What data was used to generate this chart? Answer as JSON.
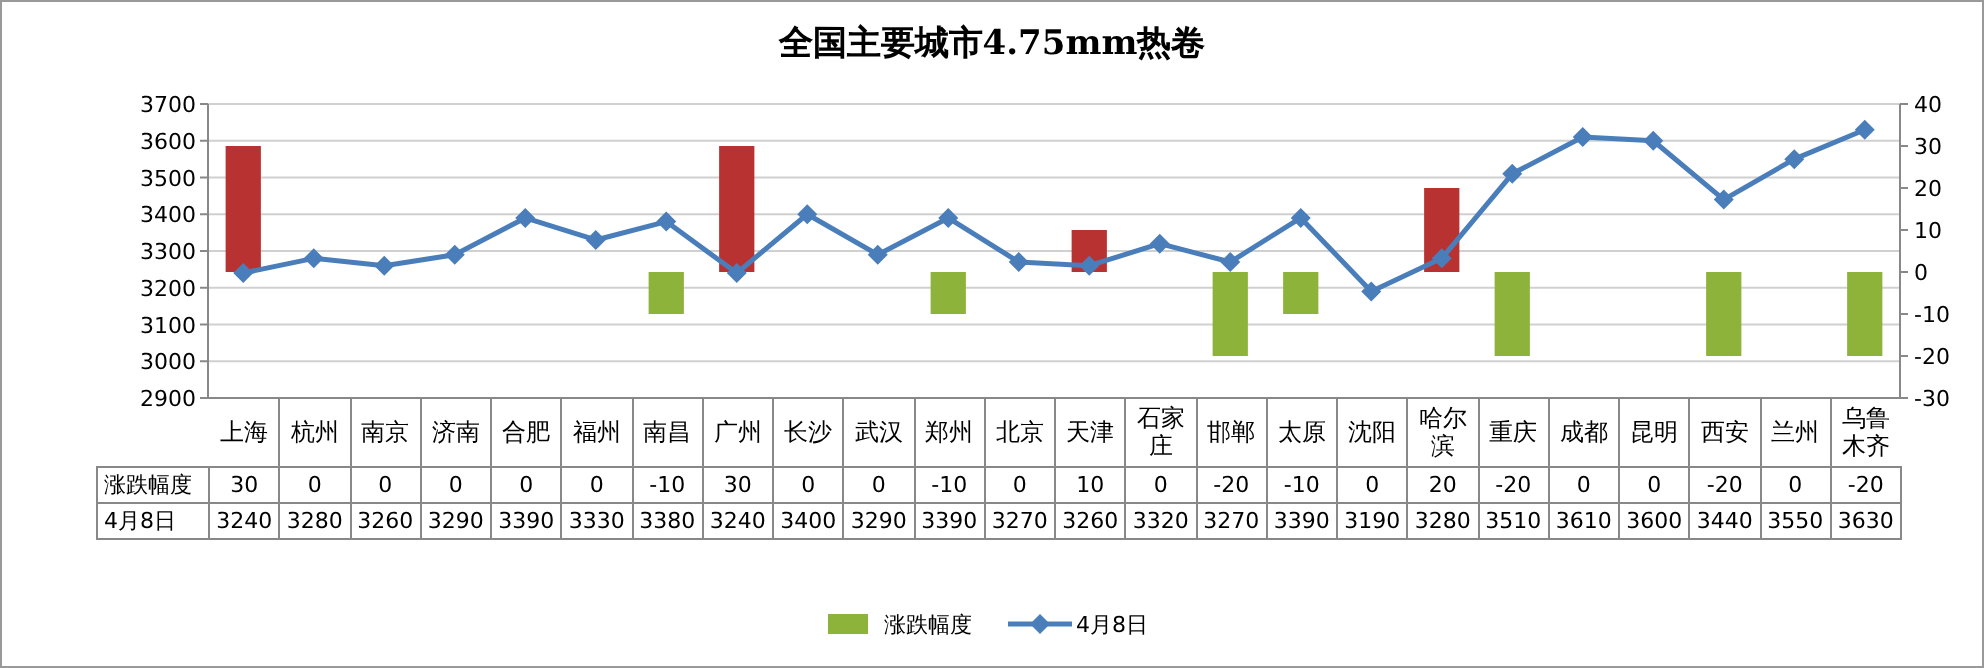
{
  "chart_data": {
    "type": "bar",
    "title": "全国主要城市4.75mm热卷",
    "categories": [
      "上海",
      "杭州",
      "南京",
      "济南",
      "合肥",
      "福州",
      "南昌",
      "广州",
      "长沙",
      "武汉",
      "郑州",
      "北京",
      "天津",
      "石家庄",
      "邯郸",
      "太原",
      "沈阳",
      "哈尔滨",
      "重庆",
      "成都",
      "昆明",
      "西安",
      "兰州",
      "乌鲁木齐"
    ],
    "series": [
      {
        "name": "涨跌幅度",
        "axis": "y2",
        "color": "#8db33a",
        "colors": [
          "#b83232",
          "#8db33a",
          "#8db33a",
          "#8db33a",
          "#8db33a",
          "#8db33a",
          "#8db33a",
          "#b83232",
          "#8db33a",
          "#8db33a",
          "#8db33a",
          "#8db33a",
          "#b83232",
          "#8db33a",
          "#8db33a",
          "#8db33a",
          "#8db33a",
          "#b83232",
          "#8db33a",
          "#8db33a",
          "#8db33a",
          "#8db33a",
          "#8db33a",
          "#8db33a"
        ],
        "values": [
          30,
          0,
          0,
          0,
          0,
          0,
          -10,
          30,
          0,
          0,
          -10,
          0,
          10,
          0,
          -20,
          -10,
          0,
          20,
          -20,
          0,
          0,
          -20,
          0,
          -20
        ]
      },
      {
        "name": "4月8日",
        "type": "line",
        "color": "#4a7ebb",
        "values": [
          3240,
          3280,
          3260,
          3290,
          3390,
          3330,
          3380,
          3240,
          3400,
          3290,
          3390,
          3270,
          3260,
          3320,
          3270,
          3390,
          3190,
          3280,
          3510,
          3610,
          3600,
          3440,
          3550,
          3630
        ]
      }
    ],
    "ylim": [
      2900,
      3700
    ],
    "yticks": [
      2900,
      3000,
      3100,
      3200,
      3300,
      3400,
      3500,
      3600,
      3700
    ],
    "y2lim": [
      -30,
      40
    ],
    "y2ticks": [
      -30,
      -20,
      -10,
      0,
      10,
      20,
      30,
      40
    ],
    "grid": "y",
    "legend": "bottom",
    "marker": "diamond",
    "line_style": "solid",
    "data_labels": true
  }
}
